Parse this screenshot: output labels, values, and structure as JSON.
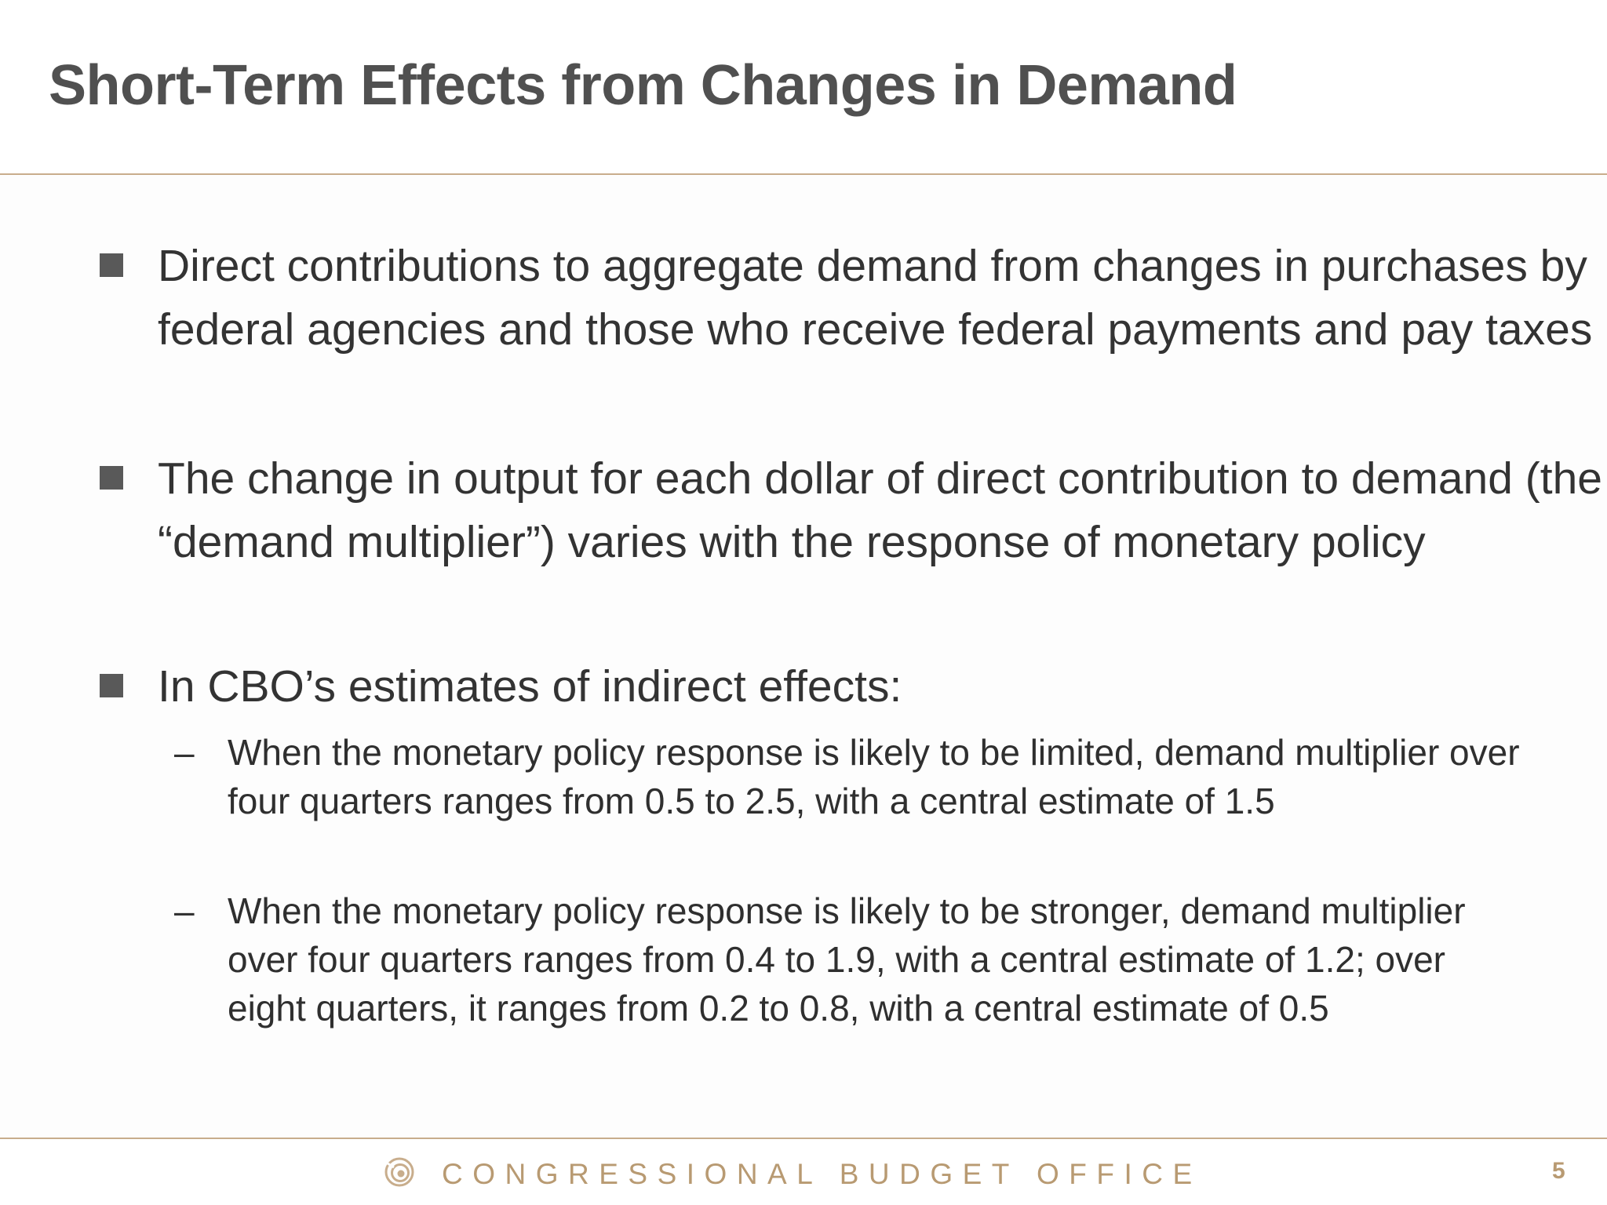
{
  "slide": {
    "title": "Short-Term Effects from Changes in Demand",
    "bullets": [
      {
        "text": "Direct contributions to aggregate demand from changes in purchases by federal agencies and those who receive federal payments and pay taxes"
      },
      {
        "text": "The change in output for each dollar of direct contribution to demand (the “demand multiplier”) varies with the response of monetary policy"
      },
      {
        "text": "In CBO’s estimates of indirect effects:",
        "subs": [
          {
            "dash": "–",
            "text": "When the monetary policy response is likely to be limited, demand multiplier over four quarters ranges from 0.5 to 2.5, with a central estimate of 1.5"
          },
          {
            "dash": "–",
            "text": "When the monetary policy response is likely to be stronger, demand multiplier over four quarters ranges from 0.4 to 1.9, with a central estimate of 1.2; over eight quarters, it ranges from 0.2 to 0.8, with a central estimate of 0.5"
          }
        ]
      }
    ]
  },
  "footer": {
    "organization": "CONGRESSIONAL BUDGET OFFICE",
    "page_number": "5",
    "logo_icon": "cbo-spiral-logo-icon"
  },
  "colors": {
    "accent_rule": "#c8ad8c",
    "footer_text": "#b89a72",
    "title_text": "#505050",
    "bullet_mark": "#595959"
  }
}
